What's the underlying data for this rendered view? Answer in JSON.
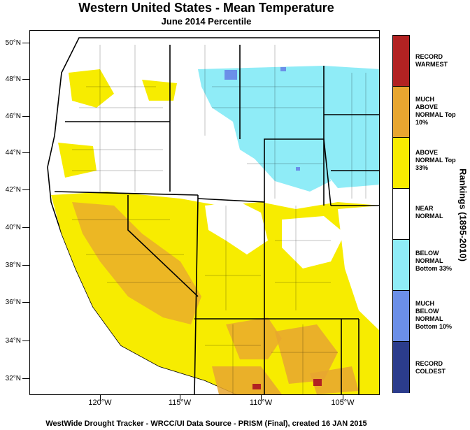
{
  "title": "Western United States - Mean Temperature",
  "subtitle": "June 2014 Percentile",
  "footer": "WestWide Drought Tracker - WRCC/UI  Data Source - PRISM (Final), created 16 JAN 2015",
  "latitude_labels": [
    "50°N",
    "48°N",
    "46°N",
    "44°N",
    "42°N",
    "40°N",
    "38°N",
    "36°N",
    "34°N",
    "32°N"
  ],
  "longitude_labels": [
    "120°W",
    "115°W",
    "110°W",
    "105°W"
  ],
  "legend": {
    "title": "Rankings (1895-2010)",
    "categories": [
      {
        "label": "RECORD WARMEST",
        "color": "#b22222"
      },
      {
        "label": "MUCH ABOVE NORMAL Top 10%",
        "color": "#e8a630"
      },
      {
        "label": "ABOVE NORMAL Top 33%",
        "color": "#f7ec00"
      },
      {
        "label": "NEAR NORMAL",
        "color": "#ffffff"
      },
      {
        "label": "BELOW NORMAL Bottom 33%",
        "color": "#8fecf7"
      },
      {
        "label": "MUCH BELOW NORMAL Bottom 10%",
        "color": "#6b8fe8"
      },
      {
        "label": "RECORD COLDEST",
        "color": "#2b3c8c"
      }
    ]
  }
}
